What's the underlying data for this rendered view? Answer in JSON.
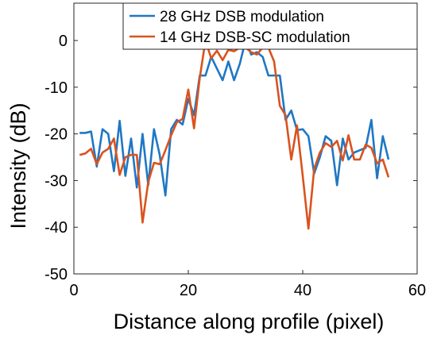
{
  "chart_data": {
    "type": "line",
    "xlabel": "Distance along profile (pixel)",
    "ylabel": "Intensity (dB)",
    "xlim": [
      0,
      60
    ],
    "ylim": [
      -50,
      8
    ],
    "xticks": [
      0,
      20,
      40,
      60
    ],
    "yticks": [
      -50,
      -40,
      -30,
      -20,
      -10,
      0
    ],
    "grid": false,
    "legend_position": "top-right",
    "x": [
      1,
      2,
      3,
      4,
      5,
      6,
      7,
      8,
      9,
      10,
      11,
      12,
      13,
      14,
      15,
      16,
      17,
      18,
      19,
      20,
      21,
      22,
      23,
      24,
      25,
      26,
      27,
      28,
      29,
      30,
      31,
      32,
      33,
      34,
      35,
      36,
      37,
      38,
      39,
      40,
      41,
      42,
      43,
      44,
      45,
      46,
      47,
      48,
      49,
      50,
      51,
      52,
      53,
      54,
      55
    ],
    "series": [
      {
        "name": "28 GHz DSB modulation",
        "color": "#1f77c4",
        "values": [
          -19.8,
          -19.8,
          -19.5,
          -27,
          -19,
          -20,
          -28,
          -17.2,
          -29,
          -21,
          -31.5,
          -20,
          -31,
          -19,
          -24.5,
          -33.2,
          -19,
          -17,
          -18,
          -12.5,
          -16,
          -7.5,
          -7.5,
          -3.5,
          -6,
          -8.5,
          -4.5,
          -8.5,
          -5,
          0,
          -3,
          -2.5,
          -3.5,
          -7.5,
          -7.5,
          -7.5,
          -17,
          -15,
          -19.2,
          -19,
          -20.5,
          -28.5,
          -25,
          -20.5,
          -21.5,
          -31,
          -21,
          -25.5,
          -24,
          -23.5,
          -23,
          -17,
          -29.5,
          -20.5,
          -25.5
        ]
      },
      {
        "name": "14 GHz DSB-SC modulation",
        "color": "#d9531e",
        "values": [
          -24.5,
          -24.2,
          -23.2,
          -26.5,
          -24,
          -23.2,
          -21,
          -28.8,
          -25,
          -24.5,
          -24.5,
          -39,
          -30.3,
          -26.2,
          -26.5,
          -23.5,
          -20.3,
          -17.5,
          -16.8,
          -10.5,
          -18.8,
          -8,
          0,
          -3.8,
          -2.2,
          -4.2,
          -2,
          -2.3,
          -1.5,
          -1.5,
          -2.5,
          -3,
          -1.5,
          -1.5,
          -4.5,
          -14,
          -16,
          -25.5,
          -18.2,
          -29,
          -40.3,
          -27.5,
          -24,
          -22,
          -22.8,
          -21.5,
          -25.7,
          -20.3,
          -25.5,
          -25.5,
          -22.3,
          -23,
          -26.3,
          -25.5,
          -29.3
        ]
      }
    ]
  }
}
